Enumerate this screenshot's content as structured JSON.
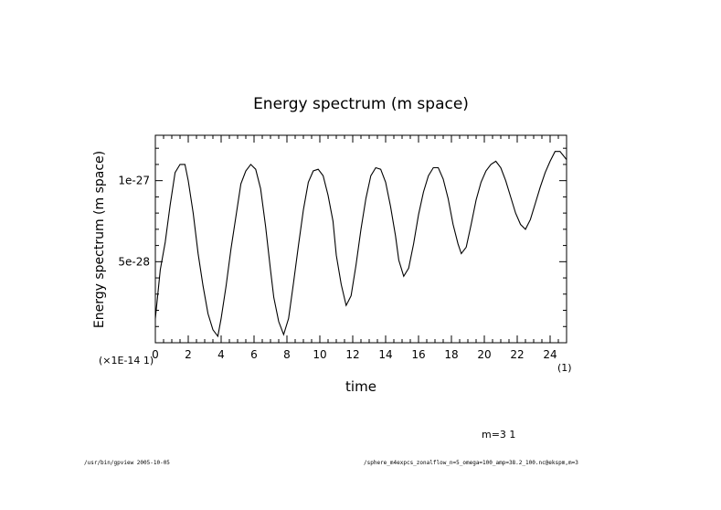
{
  "chart_data": {
    "type": "line",
    "title": "Energy spectrum (m space)",
    "xlabel": "time",
    "ylabel": "Energy spectrum (m space)",
    "x_ticks": [
      0,
      2,
      4,
      6,
      8,
      10,
      12,
      14,
      16,
      18,
      20,
      22,
      24
    ],
    "x_tick_labels": [
      "0",
      "2",
      "4",
      "6",
      "8",
      "10",
      "12",
      "14",
      "16",
      "18",
      "20",
      "22",
      "24"
    ],
    "x_scale_label": "(1)",
    "y_ticks": [
      5e-28,
      1e-27
    ],
    "y_tick_labels": [
      "5e-28",
      "1e-27"
    ],
    "y_scale_label": "(×1E-14 1)",
    "xlim": [
      0,
      25
    ],
    "ylim": [
      0,
      1.28e-27
    ],
    "series": [
      {
        "name": "m=3 1",
        "x": [
          0.0,
          0.3,
          0.6,
          0.9,
          1.2,
          1.5,
          1.8,
          2.0,
          2.3,
          2.6,
          2.9,
          3.2,
          3.5,
          3.8,
          4.0,
          4.3,
          4.6,
          4.9,
          5.2,
          5.5,
          5.8,
          6.1,
          6.4,
          6.7,
          7.0,
          7.2,
          7.5,
          7.8,
          8.1,
          8.4,
          8.7,
          9.0,
          9.3,
          9.6,
          9.9,
          10.2,
          10.5,
          10.8,
          11.0,
          11.3,
          11.6,
          11.9,
          12.2,
          12.5,
          12.8,
          13.1,
          13.4,
          13.7,
          14.0,
          14.3,
          14.6,
          14.8,
          15.1,
          15.4,
          15.7,
          16.0,
          16.3,
          16.6,
          16.9,
          17.2,
          17.5,
          17.8,
          18.1,
          18.4,
          18.6,
          18.9,
          19.2,
          19.5,
          19.8,
          20.1,
          20.4,
          20.7,
          21.0,
          21.3,
          21.6,
          21.9,
          22.2,
          22.5,
          22.8,
          23.1,
          23.4,
          23.7,
          24.0,
          24.3,
          24.6,
          25.0
        ],
        "y": [
          1.5e-28,
          4.5e-28,
          6.2e-28,
          8.5e-28,
          1.05e-27,
          1.1e-27,
          1.1e-27,
          1e-27,
          8e-28,
          5.5e-28,
          3.5e-28,
          1.8e-28,
          8e-29,
          4e-29,
          1.5e-28,
          3.5e-28,
          5.8e-28,
          7.8e-28,
          9.8e-28,
          1.06e-27,
          1.1e-27,
          1.07e-27,
          9.5e-28,
          7.2e-28,
          4.5e-28,
          2.8e-28,
          1.3e-28,
          5e-29,
          1.5e-28,
          3.7e-28,
          6e-28,
          8.2e-28,
          9.9e-28,
          1.06e-27,
          1.07e-27,
          1.03e-27,
          9.1e-28,
          7.5e-28,
          5.4e-28,
          3.6e-28,
          2.3e-28,
          2.9e-28,
          4.8e-28,
          7e-28,
          8.9e-28,
          1.03e-27,
          1.08e-27,
          1.07e-27,
          9.9e-28,
          8.4e-28,
          6.6e-28,
          5.1e-28,
          4.1e-28,
          4.6e-28,
          6.1e-28,
          7.9e-28,
          9.3e-28,
          1.03e-27,
          1.08e-27,
          1.08e-27,
          1.01e-27,
          8.9e-28,
          7.3e-28,
          6.1e-28,
          5.5e-28,
          5.9e-28,
          7.3e-28,
          8.8e-28,
          9.9e-28,
          1.06e-27,
          1.1e-27,
          1.12e-27,
          1.08e-27,
          1e-27,
          9e-28,
          8e-28,
          7.3e-28,
          7e-28,
          7.6e-28,
          8.6e-28,
          9.6e-28,
          1.05e-27,
          1.12e-27,
          1.18e-27,
          1.18e-27,
          1.13e-27
        ]
      }
    ]
  },
  "annotation": {
    "series_label": "m=3 1",
    "footer_left": "/usr/bin/gpview  2005-10-05",
    "footer_right": "/sphere_m4expcs_zonalflow_n=5_omega=100_amp=38.2_100.nc@ekspm,m=3"
  }
}
